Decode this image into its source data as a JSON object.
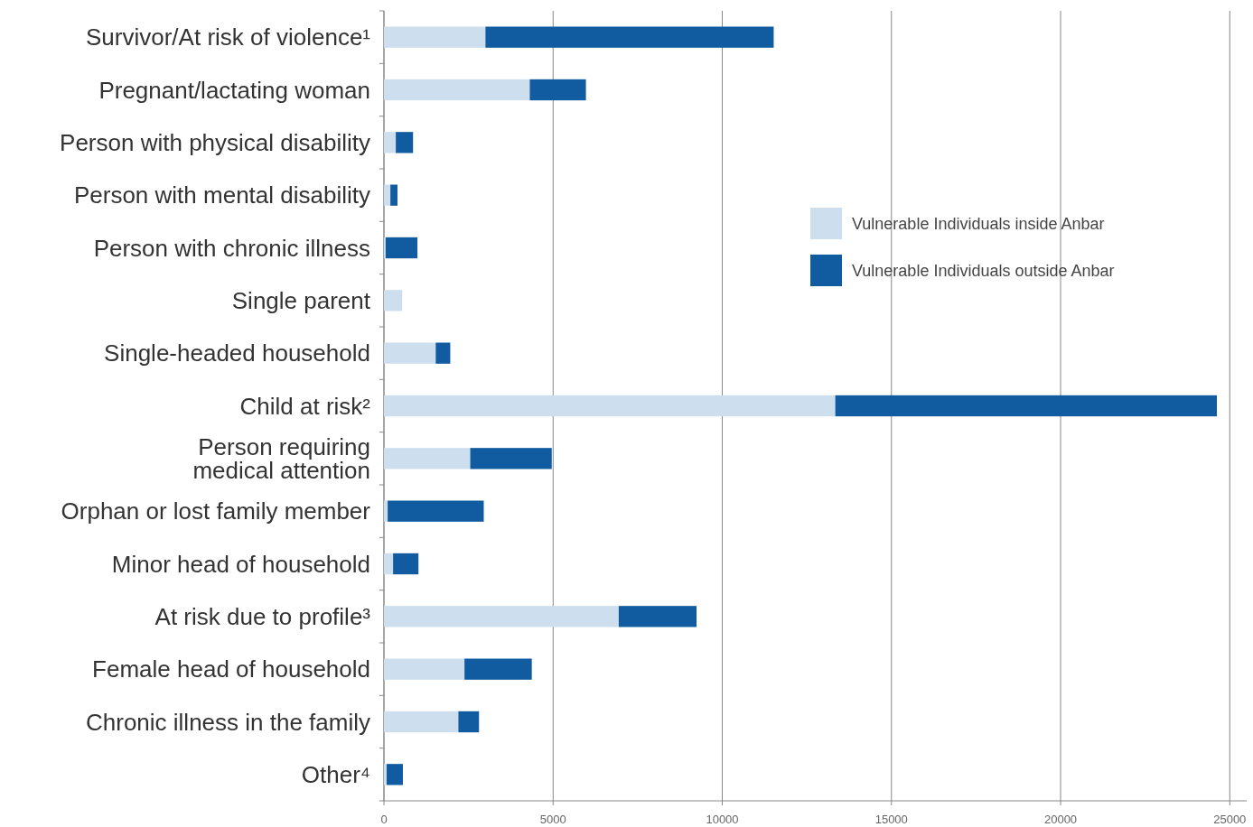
{
  "chart_data": {
    "type": "bar",
    "orientation": "horizontal",
    "stacked": true,
    "categories": [
      "Survivor/At risk of violence¹",
      "Pregnant/lactating woman",
      "Person with physical disability",
      "Person with mental disability",
      "Person with chronic illness",
      "Single parent",
      "Single-headed household",
      "Child at risk²",
      "Person requiring medical attention",
      "Orphan or lost family member",
      "Minor head of household",
      "At risk due to profile³",
      "Female head of household",
      "Chronic illness in the family",
      "Other⁴"
    ],
    "series": [
      {
        "name": "Vulnerable Individuals inside Anbar",
        "color": "#cddfee",
        "values": [
          3000,
          4310,
          350,
          190,
          50,
          540,
          1530,
          13340,
          2550,
          110,
          270,
          6940,
          2380,
          2200,
          80
        ]
      },
      {
        "name": "Vulnerable Individuals outside Anbar",
        "color": "#115ca0",
        "values": [
          8520,
          1660,
          510,
          210,
          940,
          0,
          430,
          11280,
          2410,
          2840,
          750,
          2300,
          1990,
          610,
          480
        ]
      }
    ],
    "xlim": [
      0,
      25500
    ],
    "xticks": [
      0,
      5000,
      10000,
      15000,
      20000,
      25000
    ],
    "grid": "x",
    "legend": "right"
  }
}
